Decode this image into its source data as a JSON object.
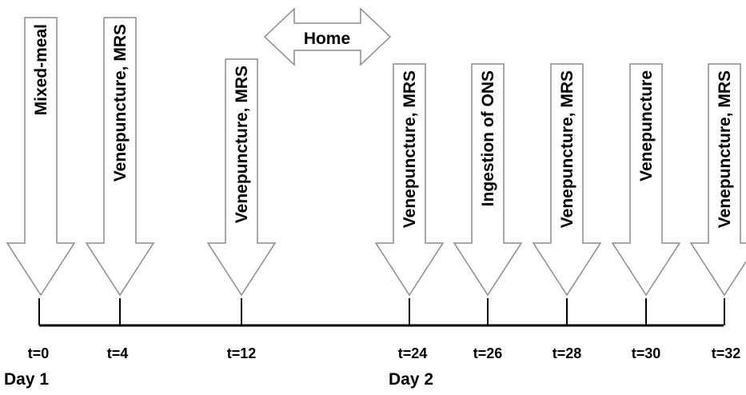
{
  "diagram": {
    "home_label": "Home",
    "events": [
      {
        "label": "Mixed-meal",
        "time_label": "t=0"
      },
      {
        "label": "Venepuncture, MRS",
        "time_label": "t=4"
      },
      {
        "label": "Venepuncture, MRS",
        "time_label": "t=12"
      },
      {
        "label": "Venepuncture, MRS",
        "time_label": "t=24"
      },
      {
        "label": "Ingestion of ONS",
        "time_label": "t=26"
      },
      {
        "label": "Venepuncture, MRS",
        "time_label": "t=28"
      },
      {
        "label": "Venepuncture",
        "time_label": "t=30"
      },
      {
        "label": "Venepuncture, MRS",
        "time_label": "t=32"
      }
    ],
    "day_labels": [
      "Day 1",
      "Day 2"
    ]
  }
}
